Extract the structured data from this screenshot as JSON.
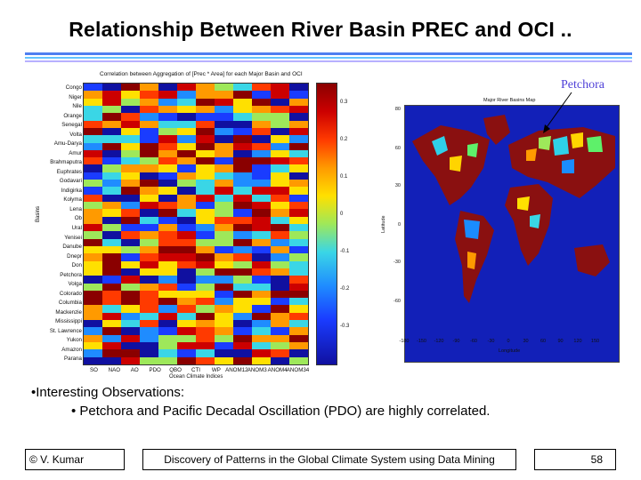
{
  "slide": {
    "title": "Relationship Between River Basin PREC and OCI ..",
    "observations_heading": "•Interesting Observations:",
    "observations": [
      "• Petchora and Pacific Decadal Oscillation (PDO) are highly correlated."
    ],
    "callout": "Petchora",
    "footer": {
      "author": "© V. Kumar",
      "course": "Discovery of Patterns in the Global Climate System using Data Mining",
      "page": "58"
    }
  },
  "heatmap": {
    "title": "Correlation between Aggregation of [Prec * Area] for each Major Basin and OCI",
    "ylabel": "Basins",
    "xlabel": "Ocean Climate Indices",
    "basins": [
      "Congo",
      "Niger",
      "Nile",
      "Orange",
      "Senegal",
      "Volta",
      "Amu-Darya",
      "Amur",
      "Brahmaputra",
      "Euphrates",
      "Godavari",
      "Indigirka",
      "Kolyma",
      "Lena",
      "Ob",
      "Ural",
      "Yenisei",
      "Danube",
      "Dnepr",
      "Don",
      "Petchora",
      "Volga",
      "Colorado",
      "Columbia",
      "Mackenzie",
      "Mississippi",
      "St. Lawrence",
      "Yukon",
      "Amazon",
      "Parana"
    ],
    "indices": [
      "SO",
      "NAO",
      "AO",
      "PDO",
      "QBO",
      "CTI",
      "WP",
      "ANOM12",
      "ANOM3",
      "ANOM4",
      "ANOM34"
    ],
    "colorbar_ticks": [
      "0.3",
      "0.2",
      "0.1",
      "0",
      "-0.1",
      "-0.2",
      "-0.3"
    ]
  },
  "map": {
    "title": "Major River Basins Map",
    "ylabel": "Latitude",
    "xlabel": "Longitude",
    "lat_ticks": [
      "80",
      "60",
      "30",
      "0",
      "-30",
      "-60"
    ],
    "lon_ticks": [
      "-180",
      "-150",
      "-120",
      "-90",
      "-60",
      "-30",
      "0",
      "30",
      "60",
      "90",
      "120",
      "150"
    ]
  },
  "colors": {
    "rule_dark": "#4f7ff0",
    "rule_light": "#63c4ff",
    "rule_lilac": "#b8b0ff",
    "callout": "#4f40d8",
    "ocean": "#1220b8",
    "land": "#8a1010"
  }
}
